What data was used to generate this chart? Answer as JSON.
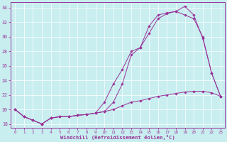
{
  "xlabel": "Windchill (Refroidissement éolien,°C)",
  "bg_color": "#c8eef0",
  "line_color": "#993399",
  "xlim": [
    -0.5,
    23.5
  ],
  "ylim": [
    17.5,
    34.8
  ],
  "xticks": [
    0,
    1,
    2,
    3,
    4,
    5,
    6,
    7,
    8,
    9,
    10,
    11,
    12,
    13,
    14,
    15,
    16,
    17,
    18,
    19,
    20,
    21,
    22,
    23
  ],
  "yticks": [
    18,
    20,
    22,
    24,
    26,
    28,
    30,
    32,
    34
  ],
  "line1_x": [
    0,
    1,
    2,
    3,
    4,
    5,
    6,
    7,
    8,
    9,
    10,
    11,
    12,
    13,
    14,
    15,
    16,
    17,
    18,
    19,
    20,
    21,
    22,
    23
  ],
  "line1_y": [
    20.0,
    19.0,
    18.5,
    18.0,
    18.8,
    19.0,
    19.0,
    19.2,
    19.3,
    19.5,
    19.7,
    21.0,
    23.5,
    27.5,
    28.5,
    30.5,
    32.5,
    33.2,
    33.5,
    34.2,
    33.0,
    29.8,
    25.0,
    21.8
  ],
  "line2_x": [
    0,
    1,
    2,
    3,
    4,
    5,
    6,
    7,
    8,
    9,
    10,
    11,
    12,
    13,
    14,
    15,
    16,
    17,
    18,
    19,
    20,
    21,
    22,
    23
  ],
  "line2_y": [
    20.0,
    19.0,
    18.5,
    18.0,
    18.8,
    19.0,
    19.0,
    19.2,
    19.3,
    19.5,
    21.0,
    23.5,
    25.5,
    28.0,
    28.5,
    31.5,
    33.0,
    33.3,
    33.5,
    33.0,
    32.5,
    30.0,
    25.0,
    21.8
  ],
  "line3_x": [
    0,
    1,
    2,
    3,
    4,
    5,
    6,
    7,
    8,
    9,
    10,
    11,
    12,
    13,
    14,
    15,
    16,
    17,
    18,
    19,
    20,
    21,
    22,
    23
  ],
  "line3_y": [
    20.0,
    19.0,
    18.5,
    18.0,
    18.8,
    19.0,
    19.0,
    19.2,
    19.3,
    19.5,
    19.7,
    20.0,
    20.5,
    21.0,
    21.2,
    21.5,
    21.8,
    22.0,
    22.2,
    22.4,
    22.5,
    22.5,
    22.3,
    21.8
  ]
}
